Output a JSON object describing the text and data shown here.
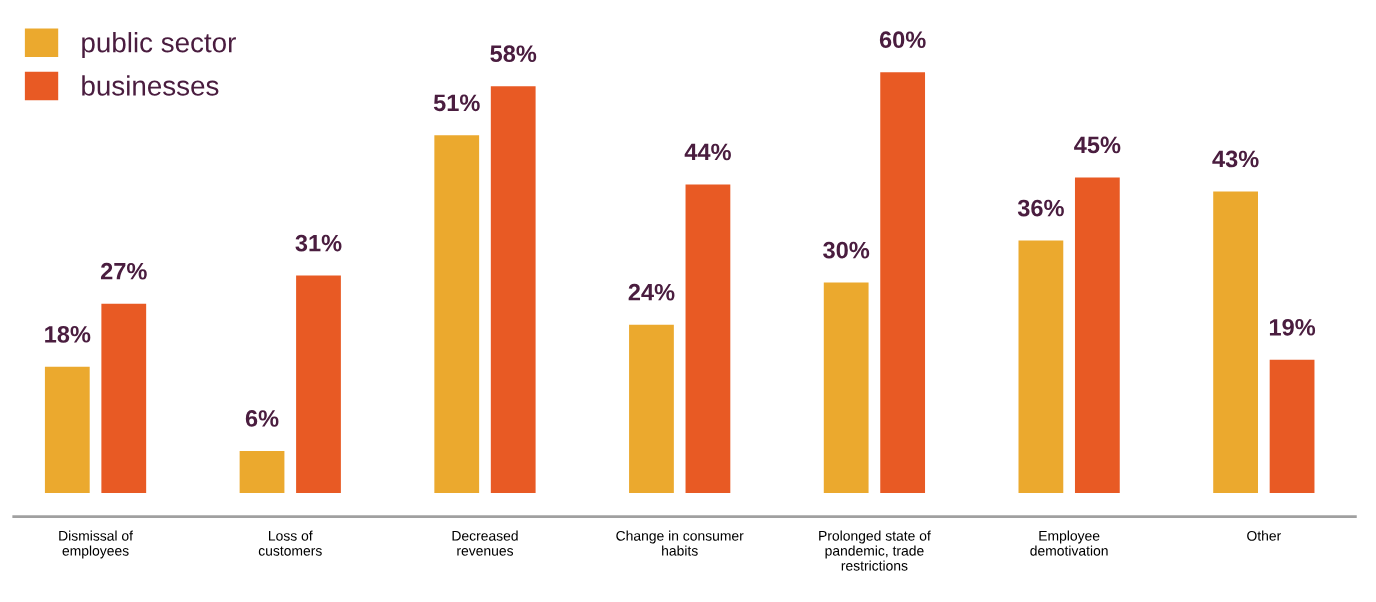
{
  "chart_data": {
    "type": "bar",
    "categories": [
      "Dismissal of\nemployees",
      "Loss of\ncustomers",
      "Decreased\nrevenues",
      "Change in consumer\nhabits",
      "Prolonged state of\npandemic, trade\nrestrictions",
      "Employee\ndemotivation",
      "Other"
    ],
    "series": [
      {
        "name": "public sector",
        "color": "#eba92e",
        "values": [
          18,
          6,
          51,
          24,
          30,
          36,
          43
        ],
        "value_labels": [
          "18%",
          "6%",
          "51%",
          "24%",
          "30%",
          "36%",
          "43%"
        ]
      },
      {
        "name": "businesses",
        "color": "#e85a24",
        "values": [
          27,
          31,
          58,
          44,
          60,
          45,
          19
        ],
        "value_labels": [
          "27%",
          "31%",
          "58%",
          "44%",
          "60%",
          "45%",
          "19%"
        ]
      }
    ],
    "legend": "top left",
    "grid": false
  }
}
